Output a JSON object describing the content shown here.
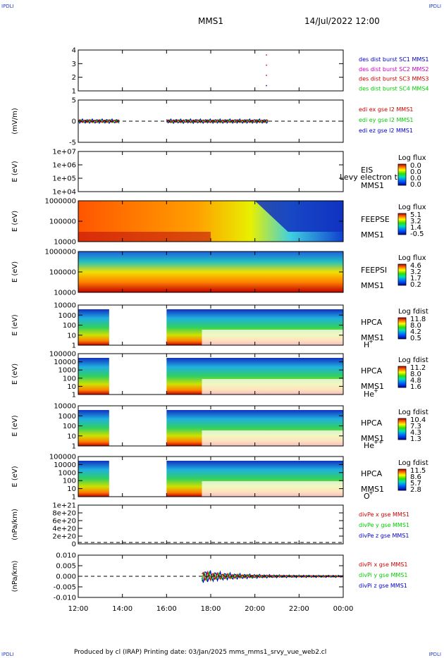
{
  "corner_tl": "IPDLI",
  "corner_tr": "IPDLI",
  "corner_bl": "IPDLI",
  "corner_br": "IPDLI",
  "header": {
    "spacecraft": "MMS1",
    "datetime": "14/Jul/2022 12:00"
  },
  "footer": "Produced by cl (IRAP)   Printing date: 03/Jan/2025   mms_mms1_srvy_vue_web2.cl",
  "colors": {
    "red": "#cc0000",
    "green": "#00cc00",
    "blue": "#0000cc",
    "magenta": "#cc00cc",
    "axis": "#000000"
  },
  "x_axis": {
    "ticks": [
      "12:00",
      "14:00",
      "16:00",
      "18:00",
      "20:00",
      "22:00",
      "00:00"
    ]
  },
  "chart_data": [
    {
      "type": "line",
      "name": "des dist burst",
      "yticks": [
        "4",
        "3",
        "2",
        "1"
      ],
      "ylim": [
        0.5,
        4.5
      ],
      "legend": [
        {
          "label": "des dist burst SC1 MMS1",
          "color": "#0000cc"
        },
        {
          "label": "des dist burst SC2 MMS2",
          "color": "#cc00cc"
        },
        {
          "label": "des dist burst SC3 MMS3",
          "color": "#cc0000"
        },
        {
          "label": "des dist burst SC4 MMS4",
          "color": "#00cc00"
        }
      ],
      "points": [
        {
          "t": 20.5,
          "y": 4,
          "color": "#cc0000"
        },
        {
          "t": 20.5,
          "y": 3,
          "color": "#cc0000"
        },
        {
          "t": 20.5,
          "y": 2,
          "color": "#cc0000"
        },
        {
          "t": 20.5,
          "y": 1,
          "color": "#0000cc"
        }
      ]
    },
    {
      "type": "line",
      "name": "edi e gse",
      "ylabel": "(mV/m)",
      "yticks": [
        "5",
        "0",
        "-5"
      ],
      "ylim": [
        -7,
        7
      ],
      "legend": [
        {
          "label": "edi ex gse l2 MMS1",
          "color": "#cc0000"
        },
        {
          "label": "edi ey gse l2 MMS1",
          "color": "#00cc00"
        },
        {
          "label": "edi ez gse l2 MMS1",
          "color": "#0000cc"
        }
      ],
      "coverage": [
        [
          12.0,
          13.9
        ],
        [
          16.0,
          20.6
        ]
      ]
    },
    {
      "type": "heatmap",
      "name": "EIS",
      "ylabel": "E (eV)",
      "yticks": [
        "1e+07",
        "1e+06",
        "1e+05",
        "1e+04"
      ],
      "label_lines": [
        "EIS",
        "MMS1"
      ],
      "overlay": "Levy electron to",
      "colorbar": {
        "title": "Log flux",
        "values": [
          "0.0",
          "0.0",
          "0.0",
          "0.0"
        ]
      },
      "coverage": []
    },
    {
      "type": "heatmap",
      "name": "FEEPSE",
      "ylabel": "E (eV)",
      "yticks": [
        "1000000",
        "100000",
        "10000"
      ],
      "label_lines": [
        "FEEPSE",
        "MMS1"
      ],
      "colorbar": {
        "title": "Log flux",
        "values": [
          "5.1",
          "3.2",
          "1.4",
          "-0.5"
        ]
      },
      "coverage": [
        [
          12.0,
          24.0
        ]
      ]
    },
    {
      "type": "heatmap",
      "name": "FEEPSI",
      "ylabel": "E (eV)",
      "yticks": [
        "1000000",
        "100000",
        "10000"
      ],
      "label_lines": [
        "FEEPSI",
        "MMS1"
      ],
      "colorbar": {
        "title": "Log flux",
        "values": [
          "4.6",
          "3.2",
          "1.7",
          "0.2"
        ]
      },
      "coverage": [
        [
          12.0,
          24.0
        ]
      ]
    },
    {
      "type": "heatmap",
      "name": "HPCA H+",
      "ylabel": "E (eV)",
      "yticks": [
        "10000",
        "1000",
        "100",
        "10",
        "1"
      ],
      "label_lines": [
        "HPCA",
        "MMS1"
      ],
      "species": "H",
      "charge": "+",
      "colorbar": {
        "title": "Log fdist",
        "values": [
          "11.8",
          "8.0",
          "4.2",
          "0.5"
        ]
      },
      "coverage": [
        [
          12.0,
          13.4
        ],
        [
          16.0,
          24.0
        ]
      ]
    },
    {
      "type": "heatmap",
      "name": "HPCA He+",
      "ylabel": "E (eV)",
      "yticks": [
        "100000",
        "10000",
        "1000",
        "100",
        "10",
        "1"
      ],
      "label_lines": [
        "HPCA",
        "MMS1"
      ],
      "species": "He",
      "charge": "+",
      "colorbar": {
        "title": "Log fdist",
        "values": [
          "11.2",
          "8.0",
          "4.8",
          "1.6"
        ]
      },
      "coverage": [
        [
          12.0,
          13.4
        ],
        [
          16.0,
          24.0
        ]
      ]
    },
    {
      "type": "heatmap",
      "name": "HPCA He++",
      "ylabel": "E (eV)",
      "yticks": [
        "10000",
        "1000",
        "100",
        "10",
        "1"
      ],
      "label_lines": [
        "HPCA",
        "MMS1"
      ],
      "species": "He",
      "charge": "++",
      "colorbar": {
        "title": "Log fdist",
        "values": [
          "10.4",
          "7.3",
          "4.3",
          "1.3"
        ]
      },
      "coverage": [
        [
          12.0,
          13.4
        ],
        [
          16.0,
          24.0
        ]
      ]
    },
    {
      "type": "heatmap",
      "name": "HPCA O+",
      "ylabel": "E (eV)",
      "yticks": [
        "100000",
        "10000",
        "1000",
        "100",
        "10",
        "1"
      ],
      "label_lines": [
        "HPCA",
        "MMS1"
      ],
      "species": "O",
      "charge": "+",
      "colorbar": {
        "title": "Log fdist",
        "values": [
          "11.5",
          "8.6",
          "5.7",
          "2.8"
        ]
      },
      "coverage": [
        [
          12.0,
          13.4
        ],
        [
          16.0,
          24.0
        ]
      ]
    },
    {
      "type": "line",
      "name": "divPe gse",
      "ylabel": "(nPa/km)",
      "yticks": [
        "1e+21",
        "8e+20",
        "6e+20",
        "4e+20",
        "2e+20",
        "0"
      ],
      "legend": [
        {
          "label": "divPe x gse MMS1",
          "color": "#cc0000"
        },
        {
          "label": "divPe y gse MMS1",
          "color": "#00cc00"
        },
        {
          "label": "divPe z gse MMS1",
          "color": "#0000cc"
        }
      ],
      "coverage": []
    },
    {
      "type": "line",
      "name": "divPi gse",
      "ylabel": "(nPa/km)",
      "yticks": [
        "0.010",
        "0.005",
        "0.000",
        "-0.005",
        "-0.010"
      ],
      "ylim": [
        -0.011,
        0.011
      ],
      "legend": [
        {
          "label": "divPi x gse MMS1",
          "color": "#cc0000"
        },
        {
          "label": "divPi y gse MMS1",
          "color": "#00cc00"
        },
        {
          "label": "divPi z gse MMS1",
          "color": "#0000cc"
        }
      ],
      "coverage": [
        [
          17.6,
          24.0
        ]
      ]
    }
  ]
}
